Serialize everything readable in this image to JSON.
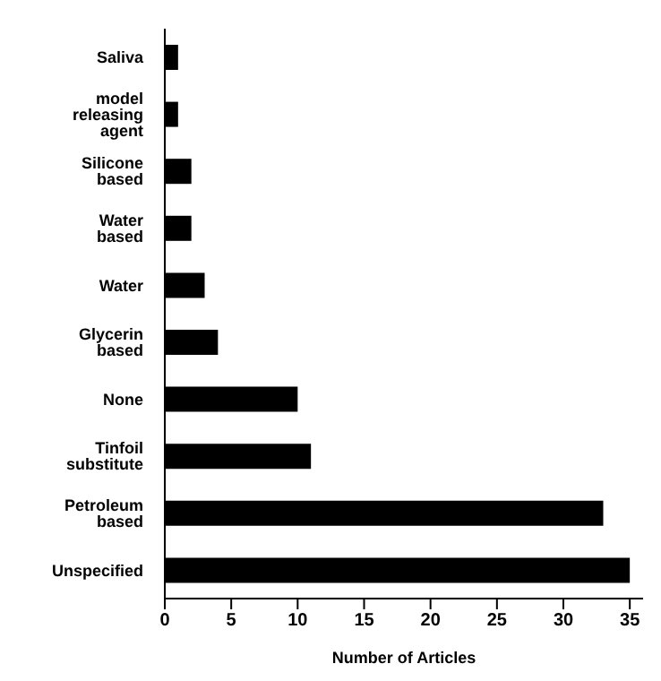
{
  "chart_data": {
    "type": "bar",
    "orientation": "horizontal",
    "xlabel": "Number of Articles",
    "categories": [
      "Saliva",
      "model releasing agent",
      "Silicone based",
      "Water based",
      "Water",
      "Glycerin based",
      "None",
      "Tinfoil substitute",
      "Petroleum based",
      "Unspecified"
    ],
    "values": [
      1,
      1,
      2,
      2,
      3,
      4,
      10,
      11,
      33,
      35
    ],
    "color": "#000000",
    "xlim": [
      0,
      36
    ],
    "xticks": [
      0,
      5,
      10,
      15,
      20,
      25,
      30,
      35
    ],
    "grid": false,
    "legend": false
  }
}
